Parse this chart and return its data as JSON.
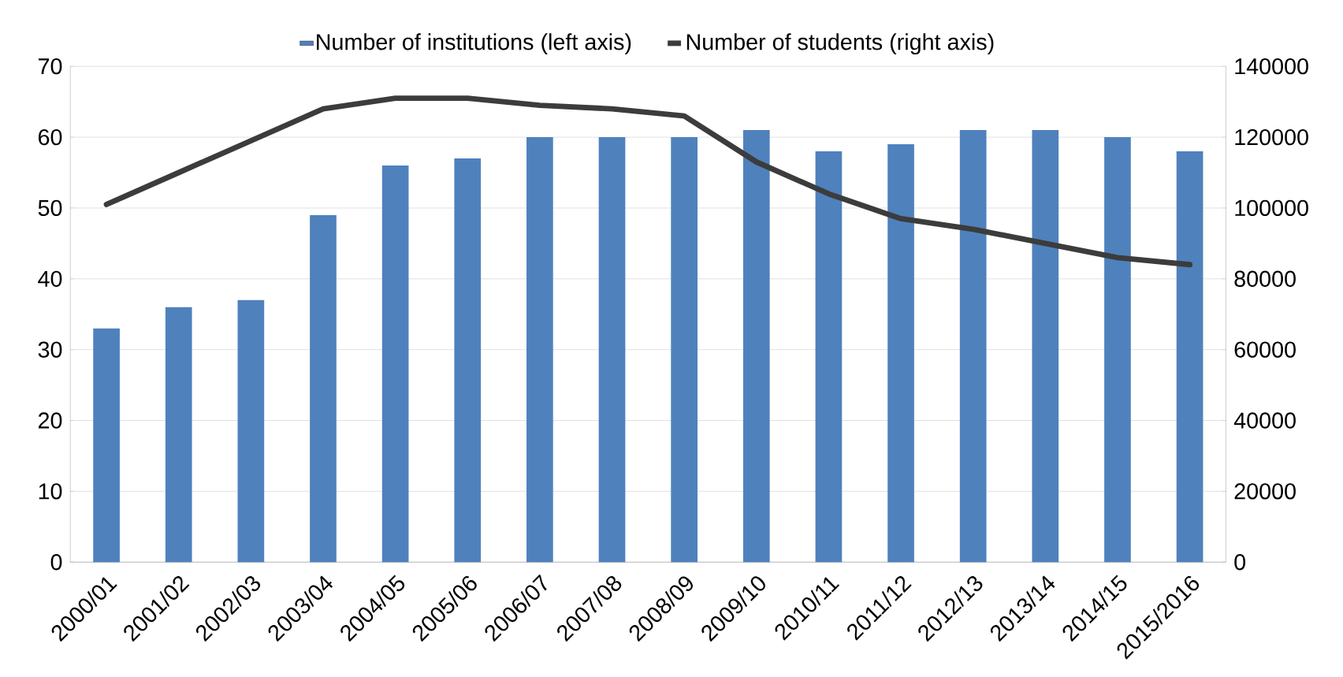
{
  "chart_data": {
    "type": "bar",
    "categories": [
      "2000/01",
      "2001/02",
      "2002/03",
      "2003/04",
      "2004/05",
      "2005/06",
      "2006/07",
      "2007/08",
      "2008/09",
      "2009/10",
      "2010/11",
      "2011/12",
      "2012/13",
      "2013/14",
      "2014/15",
      "2015/2016"
    ],
    "series": [
      {
        "name": "Number of institutions (left axis)",
        "color": "#4f81bd",
        "values": [
          33,
          36,
          37,
          49,
          56,
          57,
          60,
          60,
          60,
          61,
          58,
          59,
          61,
          61,
          60,
          58
        ]
      },
      {
        "name": "Number of students (right axis)",
        "type": "line",
        "axis": "y2",
        "color": "#3c3c3c",
        "values": [
          101000,
          110000,
          119000,
          128000,
          131000,
          131000,
          129000,
          128000,
          126000,
          113000,
          104000,
          97000,
          94000,
          90000,
          86000,
          84000
        ]
      }
    ],
    "ylim": [
      0,
      70
    ],
    "yticks": [
      0,
      10,
      20,
      30,
      40,
      50,
      60,
      70
    ],
    "y2lim": [
      0,
      140000
    ],
    "y2ticks": [
      0,
      20000,
      40000,
      60000,
      80000,
      100000,
      120000,
      140000
    ],
    "grid": "y",
    "legend": "top",
    "marker": "none",
    "line_style": "solid"
  }
}
